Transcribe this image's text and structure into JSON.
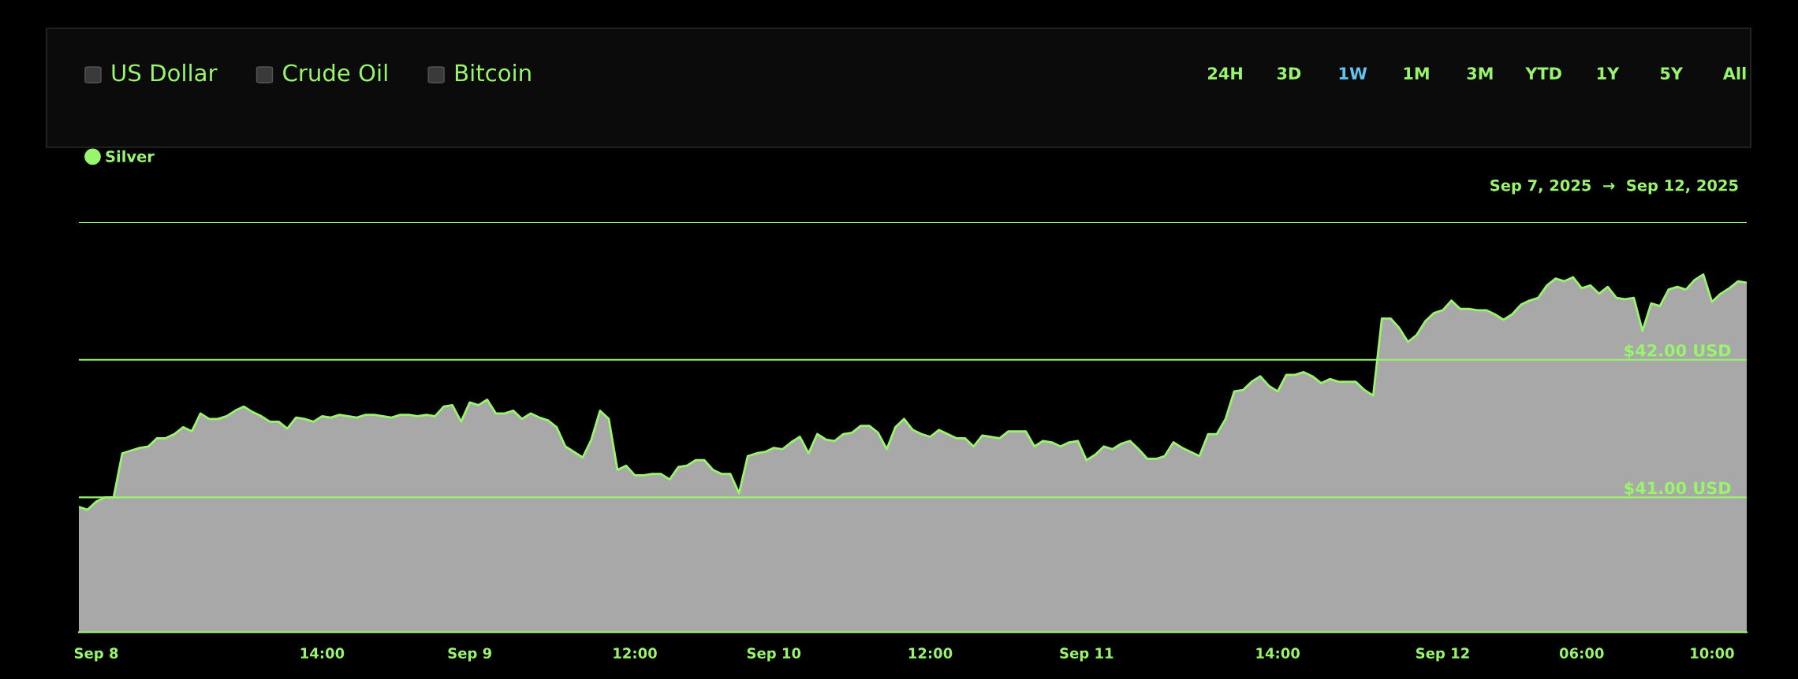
{
  "chart_data": {
    "type": "area",
    "subtitle": "Sep 7, 2025  →  Sep 12, 2025",
    "annotations": [
      "US Dollar",
      "Crude Oil",
      "Bitcoin",
      "24H",
      "3D",
      "1W",
      "1M",
      "3M",
      "YTD",
      "1Y",
      "5Y",
      "All"
    ],
    "categories": [
      null,
      null,
      "Sep 8",
      null,
      null,
      null,
      null,
      null,
      null,
      null,
      null,
      null,
      null,
      null,
      null,
      null,
      null,
      null,
      null,
      null,
      null,
      null,
      null,
      null,
      null,
      null,
      null,
      null,
      "14:00",
      null,
      null,
      null,
      null,
      null,
      null,
      null,
      null,
      null,
      null,
      null,
      null,
      null,
      null,
      null,
      null,
      "Sep 9",
      null,
      null,
      null,
      null,
      null,
      null,
      null,
      null,
      null,
      null,
      null,
      null,
      null,
      null,
      null,
      null,
      null,
      null,
      "12:00",
      null,
      null,
      null,
      null,
      null,
      null,
      null,
      null,
      null,
      null,
      null,
      null,
      null,
      null,
      null,
      "Sep 10",
      null,
      null,
      null,
      null,
      null,
      null,
      null,
      null,
      null,
      null,
      null,
      null,
      null,
      null,
      null,
      null,
      null,
      "12:00",
      null,
      null,
      null,
      null,
      null,
      null,
      null,
      null,
      null,
      null,
      null,
      null,
      null,
      null,
      null,
      null,
      null,
      "Sep 11",
      null,
      null,
      null,
      null,
      null,
      null,
      null,
      null,
      null,
      null,
      null,
      null,
      null,
      null,
      null,
      null,
      null,
      null,
      null,
      null,
      null,
      "14:00",
      null,
      null,
      null,
      null,
      null,
      null,
      null,
      null,
      null,
      null,
      null,
      null,
      null,
      null,
      null,
      null,
      null,
      null,
      "Sep 12",
      null,
      null,
      null,
      null,
      null,
      null,
      null,
      null,
      null,
      null,
      null,
      null,
      null,
      null,
      null,
      "06:00",
      null,
      null,
      null,
      null,
      null,
      null,
      null,
      null,
      null,
      null,
      null,
      null,
      null,
      null,
      "10:00",
      null,
      null,
      null,
      null
    ],
    "series": [
      {
        "name": "Silver",
        "color": "#99f56b",
        "values": [
          40.93,
          40.91,
          40.97,
          41.0,
          41.0,
          41.32,
          41.34,
          41.36,
          41.37,
          41.43,
          41.43,
          41.46,
          41.51,
          41.48,
          41.61,
          41.57,
          41.57,
          41.59,
          41.63,
          41.66,
          41.62,
          41.59,
          41.55,
          41.55,
          41.5,
          41.58,
          41.57,
          41.55,
          41.59,
          41.58,
          41.6,
          41.59,
          41.58,
          41.6,
          41.6,
          41.59,
          41.58,
          41.6,
          41.6,
          41.59,
          41.6,
          41.59,
          41.66,
          41.67,
          41.55,
          41.69,
          41.67,
          41.71,
          41.61,
          41.61,
          41.63,
          41.57,
          41.61,
          41.58,
          41.56,
          41.51,
          41.37,
          41.33,
          41.29,
          41.42,
          41.63,
          41.57,
          41.2,
          41.23,
          41.16,
          41.16,
          41.17,
          41.17,
          41.13,
          41.22,
          41.23,
          41.27,
          41.27,
          41.2,
          41.17,
          41.17,
          41.03,
          41.3,
          41.32,
          41.33,
          41.36,
          41.35,
          41.4,
          41.44,
          41.32,
          41.46,
          41.42,
          41.41,
          41.46,
          41.47,
          41.52,
          41.52,
          41.47,
          41.35,
          41.51,
          41.57,
          41.49,
          41.46,
          41.44,
          41.49,
          41.46,
          41.43,
          41.43,
          41.37,
          41.45,
          41.44,
          41.43,
          41.48,
          41.48,
          41.48,
          41.37,
          41.41,
          41.4,
          41.37,
          41.4,
          41.41,
          41.27,
          41.31,
          41.37,
          41.35,
          41.39,
          41.41,
          41.35,
          41.28,
          41.28,
          41.3,
          41.4,
          41.36,
          41.33,
          41.3,
          41.46,
          41.46,
          41.57,
          41.77,
          41.78,
          41.84,
          41.88,
          41.81,
          41.77,
          41.89,
          41.89,
          41.91,
          41.88,
          41.83,
          41.86,
          41.84,
          41.84,
          41.84,
          41.78,
          41.74,
          42.3,
          42.3,
          42.23,
          42.13,
          42.18,
          42.28,
          42.34,
          42.36,
          42.43,
          42.37,
          42.37,
          42.36,
          42.36,
          42.33,
          42.29,
          42.33,
          42.4,
          42.43,
          42.45,
          42.54,
          42.59,
          42.57,
          42.6,
          42.52,
          42.54,
          42.48,
          42.53,
          42.45,
          42.44,
          42.45,
          42.21,
          42.41,
          42.39,
          42.51,
          42.53,
          42.51,
          42.58,
          42.62,
          42.42,
          42.48,
          42.52,
          42.57,
          42.56
        ]
      }
    ],
    "ylim": [
      40.02,
      43.0
    ],
    "yticks": [
      {
        "value": 41,
        "label": "$41.00 USD"
      },
      {
        "value": 42,
        "label": "$42.00 USD"
      },
      {
        "value": 43,
        "label": null
      }
    ],
    "grid": "y",
    "legend": "top left"
  }
}
